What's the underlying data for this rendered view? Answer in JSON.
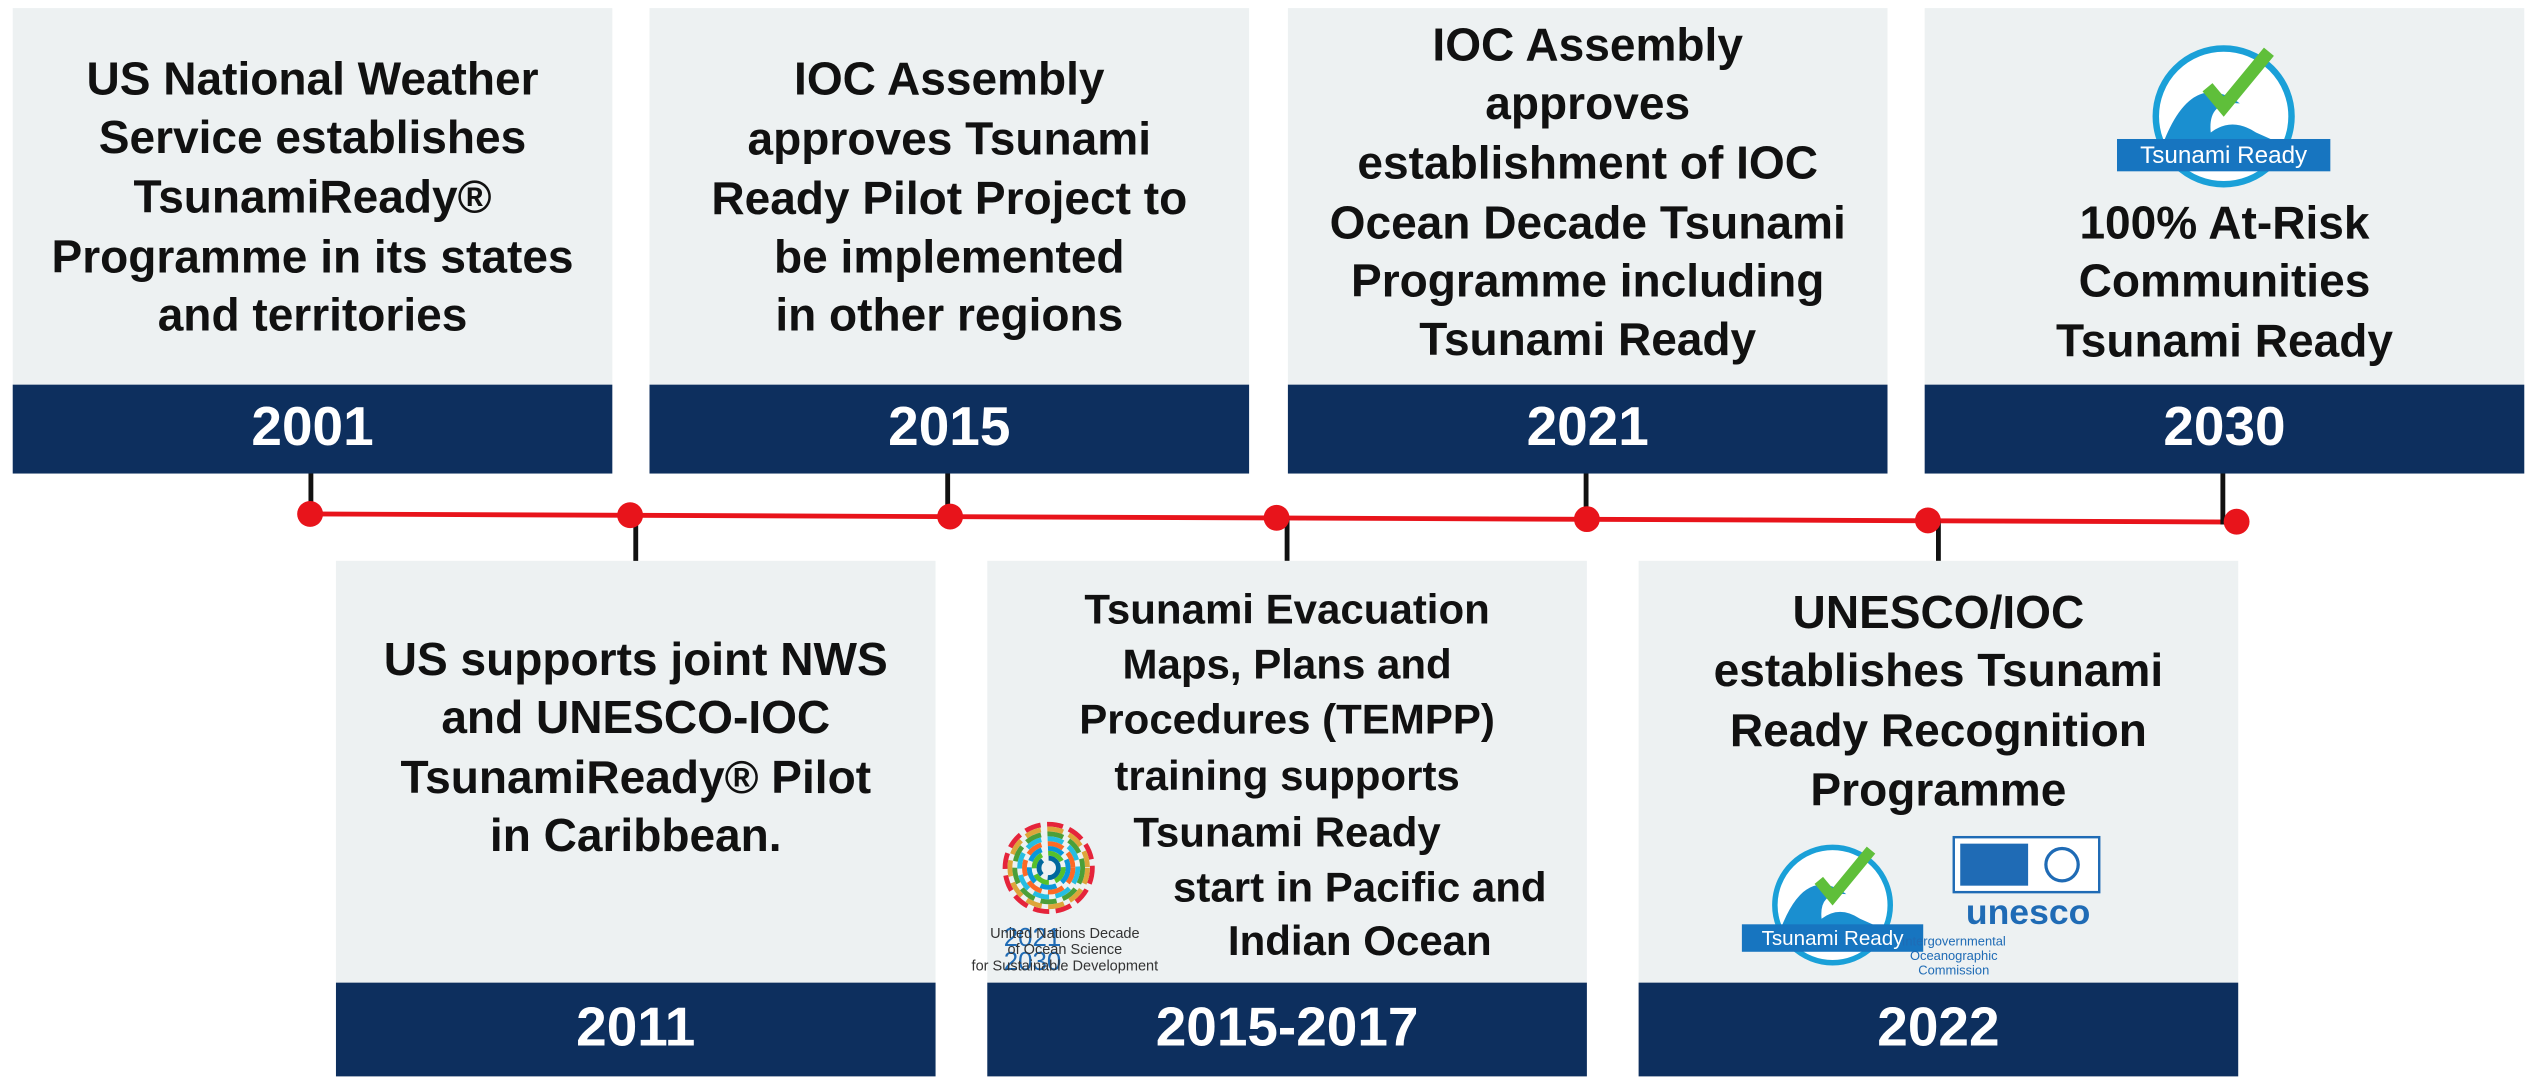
{
  "top_events": [
    {
      "year": "2001",
      "lines": [
        "US National Weather",
        "Service establishes",
        "TsunamiReady®",
        "Programme in its states",
        "and territories"
      ]
    },
    {
      "year": "2015",
      "lines": [
        "IOC Assembly",
        "approves Tsunami",
        "Ready Pilot Project to",
        "be implemented",
        "in other regions"
      ]
    },
    {
      "year": "2021",
      "lines": [
        "IOC Assembly",
        "approves",
        "establishment of IOC",
        "Ocean Decade Tsunami",
        "Programme including",
        "Tsunami Ready"
      ]
    },
    {
      "year": "2030",
      "lines": [
        "100% At-Risk",
        "Communities",
        "Tsunami Ready"
      ]
    }
  ],
  "bottom_events": [
    {
      "year": "2011",
      "lines": [
        "US supports joint NWS",
        "and UNESCO-IOC",
        "TsunamiReady® Pilot",
        "in Caribbean."
      ]
    },
    {
      "year": "2015-2017",
      "lines": [
        "Tsunami Evacuation",
        "Maps, Plans and",
        "Procedures (TEMPP)",
        "training supports",
        "Tsunami Ready",
        "start in Pacific and",
        "Indian Ocean"
      ]
    },
    {
      "year": "2022",
      "lines": [
        "UNESCO/IOC",
        "establishes Tsunami",
        "Ready Recognition",
        "Programme"
      ]
    }
  ],
  "logos": {
    "tsunami_ready": "Tsunami Ready",
    "unesco": "unesco",
    "ioc": [
      "Intergovernmental",
      "Oceanographic",
      "Commission"
    ],
    "decade_years": [
      "2021",
      "2030"
    ],
    "decade_text": [
      "United Nations Decade",
      "of Ocean Science",
      "for Sustainable Development"
    ]
  }
}
